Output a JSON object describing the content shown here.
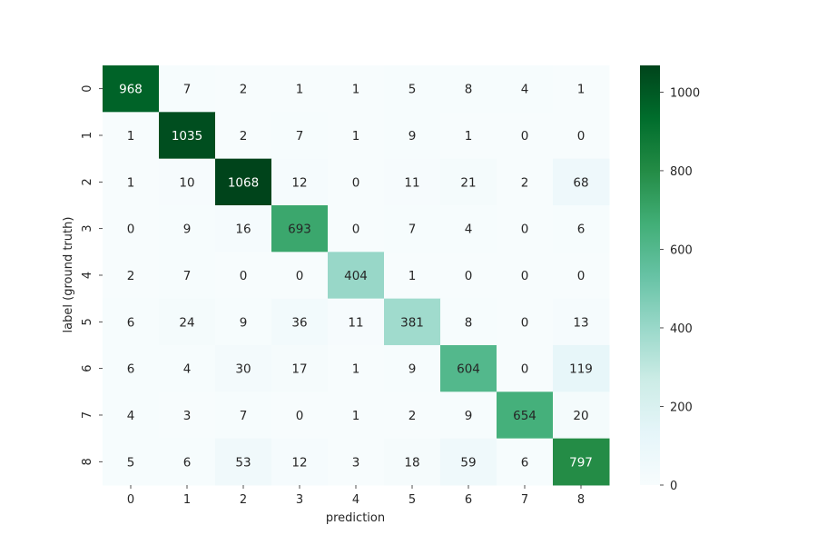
{
  "chart_data": {
    "type": "heatmap",
    "title": "",
    "xlabel": "prediction",
    "ylabel": "label (ground truth)",
    "x_categories": [
      "0",
      "1",
      "2",
      "3",
      "4",
      "5",
      "6",
      "7",
      "8"
    ],
    "y_categories": [
      "0",
      "1",
      "2",
      "3",
      "4",
      "5",
      "6",
      "7",
      "8"
    ],
    "values": [
      [
        968,
        7,
        2,
        1,
        1,
        5,
        8,
        4,
        1
      ],
      [
        1,
        1035,
        2,
        7,
        1,
        9,
        1,
        0,
        0
      ],
      [
        1,
        10,
        1068,
        12,
        0,
        11,
        21,
        2,
        68
      ],
      [
        0,
        9,
        16,
        693,
        0,
        7,
        4,
        0,
        6
      ],
      [
        2,
        7,
        0,
        0,
        404,
        1,
        0,
        0,
        0
      ],
      [
        6,
        24,
        9,
        36,
        11,
        381,
        8,
        0,
        13
      ],
      [
        6,
        4,
        30,
        17,
        1,
        9,
        604,
        0,
        119
      ],
      [
        4,
        3,
        7,
        0,
        1,
        2,
        9,
        654,
        20
      ],
      [
        5,
        6,
        53,
        12,
        3,
        18,
        59,
        6,
        797
      ]
    ],
    "colorbar": {
      "min": 0,
      "max": 1068,
      "ticks": [
        0,
        200,
        400,
        600,
        800,
        1000
      ],
      "colormap": "BuGn",
      "colors": [
        "#f7fcfd",
        "#e5f5f9",
        "#ccece6",
        "#99d8c9",
        "#66c2a4",
        "#41ae76",
        "#238b45",
        "#006d2c",
        "#00441b"
      ]
    },
    "grid": false,
    "legend": "colorbar-right"
  }
}
